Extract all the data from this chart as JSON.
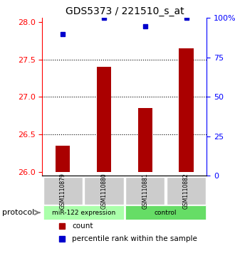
{
  "title": "GDS5373 / 221510_s_at",
  "samples": [
    "GSM1110879",
    "GSM1110880",
    "GSM1110881",
    "GSM1110882"
  ],
  "bar_values": [
    26.35,
    27.4,
    26.85,
    27.65
  ],
  "bar_base": 26.0,
  "percentile_values": [
    90,
    100,
    95,
    100
  ],
  "bar_color": "#aa0000",
  "dot_color": "#0000cc",
  "ylim_left": [
    25.95,
    28.05
  ],
  "ylim_right": [
    0,
    100
  ],
  "yticks_left": [
    26,
    26.5,
    27,
    27.5,
    28
  ],
  "yticks_right": [
    0,
    25,
    50,
    75,
    100
  ],
  "ytick_labels_right": [
    "0",
    "25",
    "50",
    "75",
    "100%"
  ],
  "grid_values": [
    26.5,
    27.0,
    27.5
  ],
  "groups": [
    {
      "label": "miR-122 expression",
      "samples": [
        0,
        1
      ],
      "color": "#aaffaa"
    },
    {
      "label": "control",
      "samples": [
        2,
        3
      ],
      "color": "#66dd66"
    }
  ],
  "legend_count_label": "count",
  "legend_pct_label": "percentile rank within the sample",
  "protocol_label": "protocol",
  "bg_color": "#f0f0f0",
  "plot_bg": "#ffffff",
  "bar_width": 0.35
}
